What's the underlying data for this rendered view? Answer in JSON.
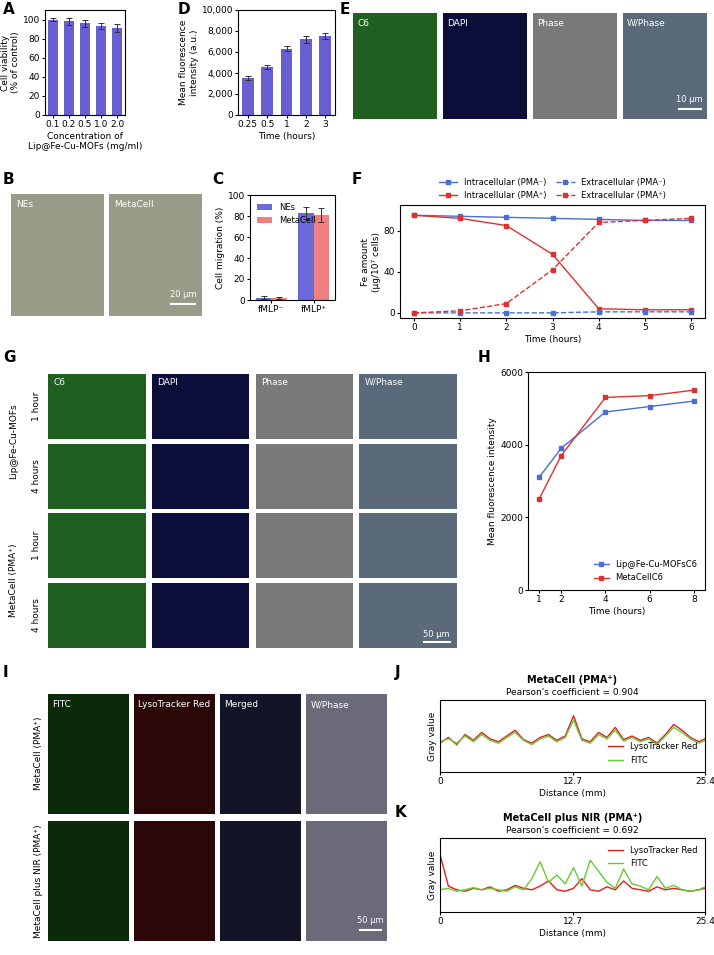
{
  "chart_data": [
    {
      "panel": "A",
      "type": "bar",
      "categories": [
        "0.1",
        "0.2",
        "0.5",
        "1.0",
        "2.0"
      ],
      "values": [
        100,
        98,
        96,
        93,
        91
      ],
      "errors": [
        2,
        4,
        4,
        3,
        4
      ],
      "color": "#6a5fd0",
      "xlabel": "Concentration of\nLip@Fe-Cu-MOFs (mg/ml)",
      "ylabel": "Cell viability\n(% of control)",
      "ylim": [
        0,
        110
      ],
      "yticks": [
        0,
        20,
        40,
        60,
        80,
        100
      ],
      "grid": false
    },
    {
      "panel": "C",
      "type": "bar",
      "categories": [
        "fMLP⁻",
        "fMLP⁺"
      ],
      "series": [
        {
          "name": "NEs",
          "color": "#6a6ad8",
          "values": [
            2,
            83
          ],
          "errors": [
            1.5,
            6
          ]
        },
        {
          "name": "MetaCell",
          "color": "#f08080",
          "values": [
            2,
            81
          ],
          "errors": [
            1,
            7
          ]
        }
      ],
      "ylabel": "Cell migration (%)",
      "ylim": [
        0,
        100
      ],
      "yticks": [
        0,
        20,
        40,
        60,
        80,
        100
      ],
      "legend": "upper left",
      "grid": false
    },
    {
      "panel": "D",
      "type": "bar",
      "categories": [
        "0.25",
        "0.5",
        "1",
        "2",
        "3"
      ],
      "values": [
        3500,
        4600,
        6300,
        7200,
        7500
      ],
      "errors": [
        200,
        200,
        250,
        300,
        300
      ],
      "color": "#6a5fd0",
      "xlabel": "Time (hours)",
      "ylabel": "Mean fluorescence\nintensity (a.u.)",
      "ylim": [
        0,
        10000
      ],
      "yticks": [
        0,
        {
          "value": 2000,
          "label": "2,000"
        },
        {
          "value": 4000,
          "label": "4,000"
        },
        {
          "value": 6000,
          "label": "6,000"
        },
        {
          "value": 8000,
          "label": "8,000"
        },
        {
          "value": 10000,
          "label": "10,000"
        }
      ],
      "grid": false
    },
    {
      "panel": "F",
      "type": "line",
      "x": [
        0,
        1,
        2,
        3,
        4,
        5,
        6
      ],
      "series": [
        {
          "name": "Intracellular (PMA⁻)",
          "color": "#4a6fd0",
          "marker": "square",
          "line_style": "solid",
          "values": [
            95,
            94,
            93,
            92,
            91,
            90,
            90
          ]
        },
        {
          "name": "Intracellular (PMA⁺)",
          "color": "#e03030",
          "marker": "square",
          "line_style": "solid",
          "values": [
            95,
            92,
            85,
            57,
            4,
            3,
            3
          ]
        },
        {
          "name": "Extracellular (PMA⁻)",
          "color": "#4a6fd0",
          "marker": "square",
          "line_style": "dashed",
          "values": [
            0,
            0,
            0,
            0,
            1,
            1,
            1
          ]
        },
        {
          "name": "Extracellular (PMA⁺)",
          "color": "#e03030",
          "marker": "square",
          "line_style": "dashed",
          "values": [
            0,
            2,
            9,
            42,
            88,
            90,
            92
          ]
        }
      ],
      "xlabel": "Time (hours)",
      "ylabel": "Fe amount\n(μg/10⁷ cells)",
      "xlim": [
        -0.3,
        6.3
      ],
      "xticks": [
        0,
        1,
        2,
        3,
        4,
        5,
        6
      ],
      "ylim": [
        -5,
        105
      ],
      "yticks": [
        0,
        40,
        80
      ],
      "legend": "top",
      "grid": false
    },
    {
      "panel": "H",
      "type": "line",
      "x": [
        1,
        2,
        4,
        6,
        8
      ],
      "series": [
        {
          "name": "Lip@Fe-Cu-MOFsC6",
          "color": "#4a6fd0",
          "marker": "square",
          "line_style": "solid",
          "values": [
            3100,
            3900,
            4900,
            5050,
            5200
          ]
        },
        {
          "name": "MetaCellC6",
          "color": "#e03030",
          "marker": "square",
          "line_style": "solid",
          "values": [
            2500,
            3700,
            5300,
            5350,
            5500
          ]
        }
      ],
      "xlabel": "Time (hours)",
      "ylabel": "Mean fluorescence intensity",
      "xlim": [
        0.5,
        8.5
      ],
      "xticks": [
        1,
        2,
        4,
        6,
        8
      ],
      "ylim": [
        0,
        6000
      ],
      "yticks": [
        0,
        2000,
        4000,
        6000
      ],
      "legend": "lower right",
      "grid": false
    },
    {
      "panel": "J",
      "type": "line",
      "title": "MetaCell (PMA⁺)",
      "subtitle": "Pearson's coefficient = 0.904",
      "x": [
        0,
        0.8,
        1.6,
        2.4,
        3.2,
        4.0,
        4.8,
        5.6,
        6.4,
        7.2,
        8.0,
        8.8,
        9.6,
        10.4,
        11.2,
        12.0,
        12.8,
        13.6,
        14.4,
        15.2,
        16.0,
        16.8,
        17.6,
        18.4,
        19.2,
        20.0,
        20.8,
        21.6,
        22.4,
        23.2,
        24.0,
        24.8,
        25.4
      ],
      "series": [
        {
          "name": "LysoTracker Red",
          "color": "#e02020",
          "line_style": "solid",
          "values": [
            40,
            48,
            38,
            52,
            44,
            55,
            46,
            42,
            50,
            58,
            45,
            40,
            48,
            52,
            44,
            50,
            78,
            46,
            42,
            55,
            48,
            62,
            45,
            50,
            44,
            48,
            40,
            52,
            66,
            58,
            48,
            42,
            46
          ]
        },
        {
          "name": "FITC",
          "color": "#66cc33",
          "line_style": "solid",
          "values": [
            42,
            46,
            40,
            50,
            42,
            52,
            44,
            40,
            48,
            55,
            44,
            38,
            46,
            50,
            42,
            48,
            72,
            44,
            40,
            52,
            46,
            58,
            43,
            48,
            42,
            46,
            38,
            50,
            62,
            55,
            46,
            40,
            44
          ]
        }
      ],
      "xlabel": "Distance (mm)",
      "ylabel": "Gray value",
      "xlim": [
        0,
        25.4
      ],
      "xticks": [
        0,
        12.7,
        25.4
      ],
      "ylim": [
        0,
        100
      ],
      "yticks": [],
      "tick_labels": "x",
      "legend": "lower right",
      "grid": false
    },
    {
      "panel": "K",
      "type": "line",
      "title": "MetaCell plus NIR (PMA⁺)",
      "subtitle": "Pearson's coefficient = 0.692",
      "x": [
        0,
        0.8,
        1.6,
        2.4,
        3.2,
        4.0,
        4.8,
        5.6,
        6.4,
        7.2,
        8.0,
        8.8,
        9.6,
        10.4,
        11.2,
        12.0,
        12.8,
        13.6,
        14.4,
        15.2,
        16.0,
        16.8,
        17.6,
        18.4,
        19.2,
        20.0,
        20.8,
        21.6,
        22.4,
        23.2,
        24.0,
        24.8,
        25.4
      ],
      "series": [
        {
          "name": "LysoTracker Red",
          "color": "#e02020",
          "line_style": "solid",
          "values": [
            78,
            35,
            30,
            28,
            32,
            30,
            34,
            28,
            30,
            36,
            32,
            30,
            35,
            42,
            30,
            28,
            32,
            45,
            30,
            28,
            34,
            30,
            42,
            32,
            30,
            28,
            34,
            30,
            32,
            30,
            28,
            30,
            32
          ]
        },
        {
          "name": "FITC",
          "color": "#66cc33",
          "line_style": "solid",
          "values": [
            30,
            32,
            28,
            30,
            33,
            30,
            32,
            30,
            28,
            34,
            30,
            45,
            68,
            40,
            50,
            38,
            60,
            35,
            70,
            55,
            40,
            32,
            58,
            38,
            35,
            30,
            48,
            32,
            36,
            30,
            28,
            30,
            34
          ]
        }
      ],
      "xlabel": "Distance (mm)",
      "ylabel": "Gray value",
      "xlim": [
        0,
        25.4
      ],
      "xticks": [
        0,
        12.7,
        25.4
      ],
      "ylim": [
        0,
        100
      ],
      "yticks": [],
      "tick_labels": "x",
      "legend": "upper right",
      "grid": false
    }
  ],
  "images": [
    {
      "panel": "B",
      "column_labels": [
        "NEs",
        "MetaCell"
      ],
      "colors": [
        "#9a9a88",
        "#9a9a88"
      ],
      "scale_bar": "20 μm"
    },
    {
      "panel": "E",
      "column_labels": [
        "C6",
        "DAPI",
        "Phase",
        "W/Phase"
      ],
      "colors": [
        "#1f5f1f",
        "#0d0d3a",
        "#7a7a7a",
        "#5a6a7a"
      ],
      "scale_bar": "10 μm"
    },
    {
      "panel": "G",
      "column_labels": [
        "C6",
        "DAPI",
        "Phase",
        "W/Phase"
      ],
      "colors": [
        "#1f5f1f",
        "#0d0d3a",
        "#7a7a7a",
        "#5a6a7a"
      ],
      "group_labels": [
        "Lip@Fe-Cu-MOFs",
        "MetaCell (PMA⁺)"
      ],
      "row_labels": [
        "1 hour",
        "4 hours",
        "1 hour",
        "4 hours"
      ],
      "scale_bar": "50 μm"
    },
    {
      "panel": "I",
      "column_labels": [
        "FITC",
        "LysoTracker Red",
        "Merged",
        "W/Phase"
      ],
      "colors": [
        "#0a2a0a",
        "#2a0808",
        "#141428",
        "#6a6a78"
      ],
      "row_labels": [
        "MetaCell (PMA⁺)",
        "MetaCell plus NIR (PMA⁺)"
      ],
      "scale_bar": "50 μm"
    }
  ]
}
